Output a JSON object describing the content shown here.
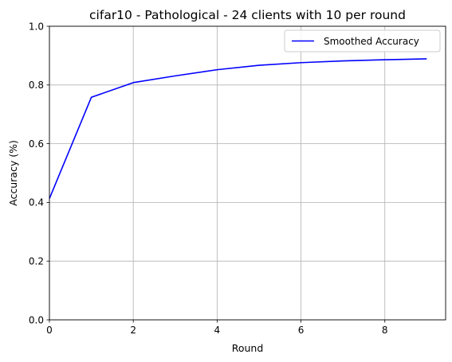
{
  "chart_data": {
    "type": "line",
    "title": "cifar10 - Pathological - 24 clients with 10 per round",
    "xlabel": "Round",
    "ylabel": "Accuracy (%)",
    "xlim": [
      0,
      9.45
    ],
    "ylim": [
      0.0,
      1.0
    ],
    "xticks": [
      0,
      2,
      4,
      6,
      8
    ],
    "xtick_labels": [
      "0",
      "2",
      "4",
      "6",
      "8"
    ],
    "yticks": [
      0.0,
      0.2,
      0.4,
      0.6,
      0.8,
      1.0
    ],
    "ytick_labels": [
      "0.0",
      "0.2",
      "0.4",
      "0.6",
      "0.8",
      "1.0"
    ],
    "grid": true,
    "legend_position": "top-right",
    "series": [
      {
        "name": "Smoothed Accuracy",
        "color": "#0000ff",
        "x": [
          0,
          1,
          2,
          3,
          4,
          5,
          6,
          7,
          8,
          9
        ],
        "values": [
          0.413,
          0.758,
          0.808,
          0.831,
          0.852,
          0.867,
          0.876,
          0.882,
          0.886,
          0.889
        ]
      }
    ]
  }
}
